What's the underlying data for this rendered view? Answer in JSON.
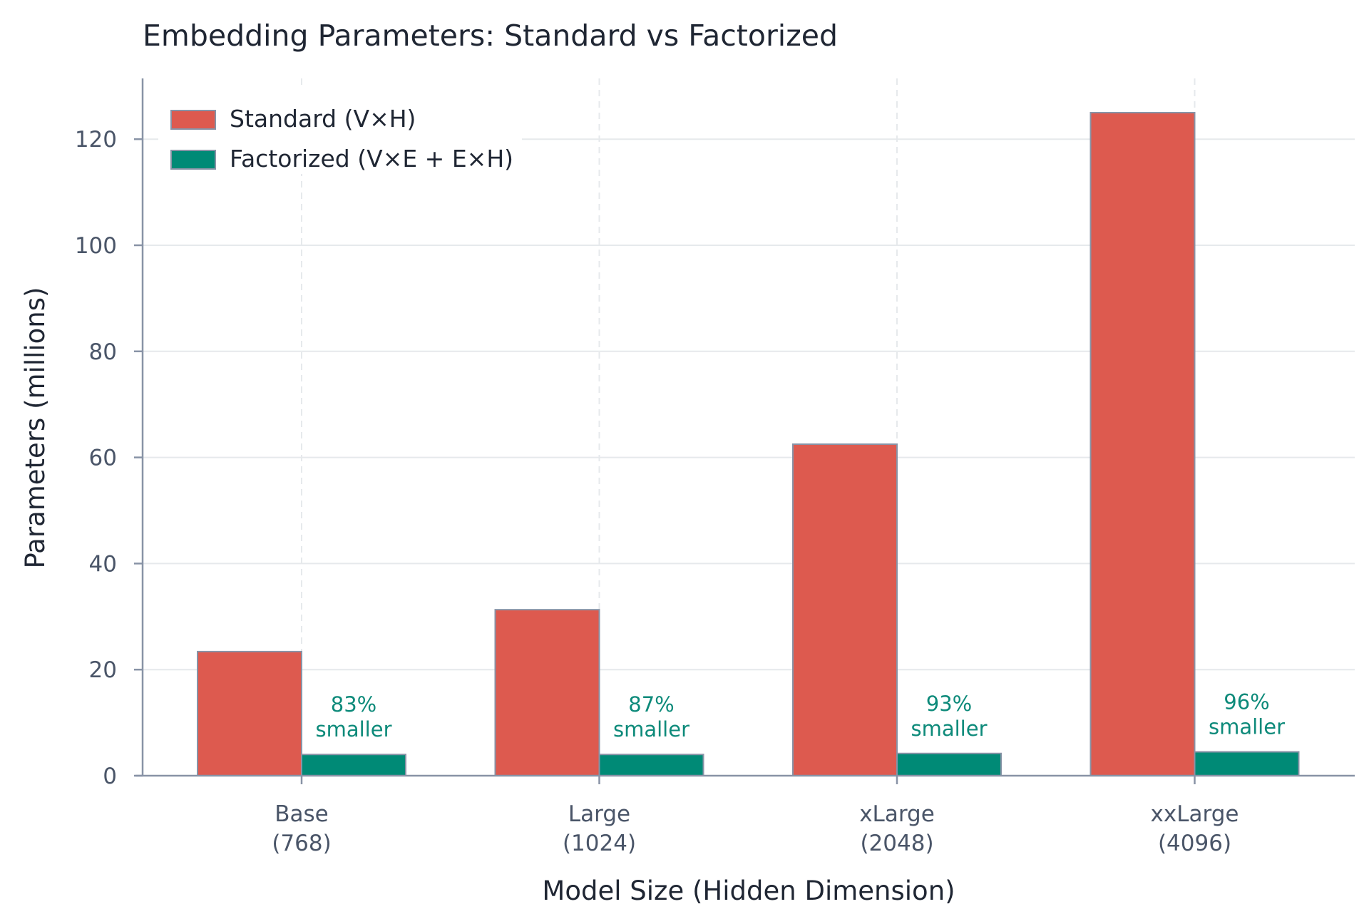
{
  "chart_data": {
    "type": "bar",
    "title": "Embedding Parameters: Standard vs Factorized",
    "xlabel": "Model Size (Hidden Dimension)",
    "ylabel": "Parameters (millions)",
    "ylim": [
      0,
      131
    ],
    "yticks": [
      0,
      20,
      40,
      60,
      80,
      100,
      120
    ],
    "grid": true,
    "legend_position": "top-left",
    "categories": [
      [
        "Base",
        "(768)"
      ],
      [
        "Large",
        "(1024)"
      ],
      [
        "xLarge",
        "(2048)"
      ],
      [
        "xxLarge",
        "(4096)"
      ]
    ],
    "series": [
      {
        "name": "Standard (V×H)",
        "color": "#dd5a4f",
        "values": [
          23.4,
          31.3,
          62.5,
          125.0
        ]
      },
      {
        "name": "Factorized (V×E + E×H)",
        "color": "#008a76",
        "values": [
          4.0,
          4.0,
          4.2,
          4.5
        ]
      }
    ],
    "annotations": [
      [
        "83%",
        "smaller"
      ],
      [
        "87%",
        "smaller"
      ],
      [
        "93%",
        "smaller"
      ],
      [
        "96%",
        "smaller"
      ]
    ]
  }
}
